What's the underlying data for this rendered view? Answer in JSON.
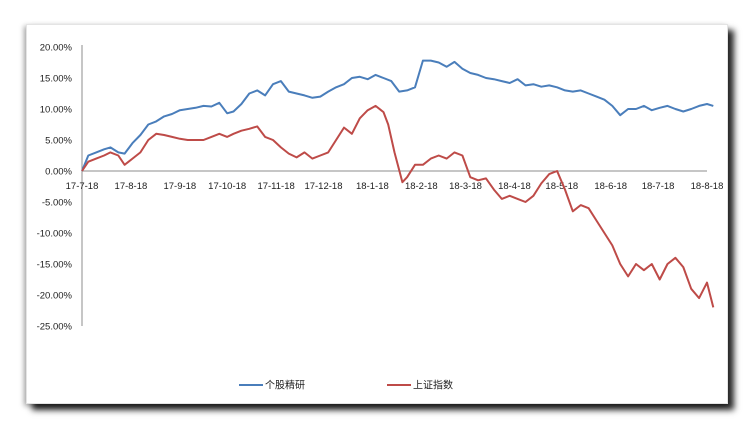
{
  "chart_data": {
    "type": "line",
    "title": "",
    "xlabel": "",
    "ylabel": "",
    "ylim": [
      -0.25,
      0.2
    ],
    "grid": false,
    "legend_position": "bottom",
    "y_ticks": [
      "20.00%",
      "15.00%",
      "10.00%",
      "5.00%",
      "0.00%",
      "-5.00%",
      "-10.00%",
      "-15.00%",
      "-20.00%",
      "-25.00%"
    ],
    "x_ticks": [
      "17-7-18",
      "17-8-18",
      "17-9-18",
      "17-10-18",
      "17-11-18",
      "17-12-18",
      "18-1-18",
      "18-2-18",
      "18-3-18",
      "18-4-18",
      "18-5-18",
      "18-6-18",
      "18-7-18",
      "18-8-18"
    ],
    "x_tick_dates": [
      "2017-07-18",
      "2017-08-18",
      "2017-09-18",
      "2017-10-18",
      "2017-11-18",
      "2017-12-18",
      "2018-01-18",
      "2018-02-18",
      "2018-03-18",
      "2018-04-18",
      "2018-05-18",
      "2018-06-18",
      "2018-07-18",
      "2018-08-18"
    ],
    "series": [
      {
        "name": "个股精研",
        "color": "#4a7ebb",
        "x": [
          "2017-07-18",
          "2017-07-22",
          "2017-07-27",
          "2017-08-01",
          "2017-08-05",
          "2017-08-10",
          "2017-08-14",
          "2017-08-19",
          "2017-08-24",
          "2017-08-29",
          "2017-09-03",
          "2017-09-08",
          "2017-09-13",
          "2017-09-18",
          "2017-09-23",
          "2017-09-28",
          "2017-10-03",
          "2017-10-08",
          "2017-10-13",
          "2017-10-18",
          "2017-10-22",
          "2017-10-27",
          "2017-11-01",
          "2017-11-06",
          "2017-11-11",
          "2017-11-16",
          "2017-11-21",
          "2017-11-26",
          "2017-12-01",
          "2017-12-06",
          "2017-12-11",
          "2017-12-16",
          "2017-12-21",
          "2017-12-26",
          "2017-12-31",
          "2018-01-05",
          "2018-01-10",
          "2018-01-15",
          "2018-01-20",
          "2018-01-25",
          "2018-01-30",
          "2018-02-04",
          "2018-02-09",
          "2018-02-14",
          "2018-02-19",
          "2018-02-24",
          "2018-03-01",
          "2018-03-06",
          "2018-03-11",
          "2018-03-16",
          "2018-03-21",
          "2018-03-26",
          "2018-03-31",
          "2018-04-05",
          "2018-04-10",
          "2018-04-15",
          "2018-04-20",
          "2018-04-25",
          "2018-04-30",
          "2018-05-05",
          "2018-05-10",
          "2018-05-15",
          "2018-05-20",
          "2018-05-25",
          "2018-05-30",
          "2018-06-04",
          "2018-06-09",
          "2018-06-14",
          "2018-06-19",
          "2018-06-24",
          "2018-06-29",
          "2018-07-04",
          "2018-07-09",
          "2018-07-14",
          "2018-07-19",
          "2018-07-24",
          "2018-07-29",
          "2018-08-03",
          "2018-08-08",
          "2018-08-13",
          "2018-08-18",
          "2018-08-22"
        ],
        "y": [
          0.0,
          0.025,
          0.03,
          0.035,
          0.038,
          0.03,
          0.028,
          0.045,
          0.058,
          0.075,
          0.08,
          0.088,
          0.092,
          0.098,
          0.1,
          0.102,
          0.105,
          0.104,
          0.11,
          0.093,
          0.096,
          0.108,
          0.125,
          0.13,
          0.122,
          0.14,
          0.145,
          0.128,
          0.125,
          0.122,
          0.118,
          0.12,
          0.128,
          0.135,
          0.14,
          0.15,
          0.152,
          0.148,
          0.155,
          0.15,
          0.145,
          0.128,
          0.13,
          0.135,
          0.178,
          0.178,
          0.175,
          0.168,
          0.176,
          0.165,
          0.158,
          0.155,
          0.15,
          0.148,
          0.145,
          0.142,
          0.148,
          0.138,
          0.14,
          0.136,
          0.138,
          0.135,
          0.13,
          0.128,
          0.13,
          0.125,
          0.12,
          0.115,
          0.105,
          0.09,
          0.1,
          0.1,
          0.105,
          0.098,
          0.102,
          0.105,
          0.1,
          0.096,
          0.1,
          0.105,
          0.108,
          0.105
        ]
      },
      {
        "name": "上证指数",
        "color": "#be4b48",
        "x": [
          "2017-07-18",
          "2017-07-22",
          "2017-07-27",
          "2017-08-01",
          "2017-08-05",
          "2017-08-10",
          "2017-08-14",
          "2017-08-19",
          "2017-08-24",
          "2017-08-29",
          "2017-09-03",
          "2017-09-08",
          "2017-09-13",
          "2017-09-18",
          "2017-09-23",
          "2017-09-28",
          "2017-10-03",
          "2017-10-08",
          "2017-10-13",
          "2017-10-18",
          "2017-10-22",
          "2017-10-27",
          "2017-11-01",
          "2017-11-06",
          "2017-11-11",
          "2017-11-16",
          "2017-11-21",
          "2017-11-26",
          "2017-12-01",
          "2017-12-06",
          "2017-12-11",
          "2017-12-16",
          "2017-12-21",
          "2017-12-26",
          "2017-12-31",
          "2018-01-05",
          "2018-01-10",
          "2018-01-15",
          "2018-01-20",
          "2018-01-25",
          "2018-01-28",
          "2018-02-01",
          "2018-02-06",
          "2018-02-09",
          "2018-02-14",
          "2018-02-19",
          "2018-02-24",
          "2018-03-01",
          "2018-03-06",
          "2018-03-11",
          "2018-03-16",
          "2018-03-21",
          "2018-03-26",
          "2018-03-31",
          "2018-04-05",
          "2018-04-10",
          "2018-04-15",
          "2018-04-20",
          "2018-04-25",
          "2018-04-30",
          "2018-05-05",
          "2018-05-10",
          "2018-05-15",
          "2018-05-20",
          "2018-05-25",
          "2018-05-30",
          "2018-06-04",
          "2018-06-09",
          "2018-06-14",
          "2018-06-19",
          "2018-06-24",
          "2018-06-29",
          "2018-07-04",
          "2018-07-09",
          "2018-07-14",
          "2018-07-19",
          "2018-07-24",
          "2018-07-29",
          "2018-08-03",
          "2018-08-08",
          "2018-08-13",
          "2018-08-18",
          "2018-08-22"
        ],
        "y": [
          0.0,
          0.015,
          0.02,
          0.025,
          0.03,
          0.025,
          0.01,
          0.02,
          0.03,
          0.05,
          0.06,
          0.058,
          0.055,
          0.052,
          0.05,
          0.05,
          0.05,
          0.055,
          0.06,
          0.055,
          0.06,
          0.065,
          0.068,
          0.072,
          0.055,
          0.05,
          0.038,
          0.028,
          0.022,
          0.03,
          0.02,
          0.025,
          0.03,
          0.05,
          0.07,
          0.06,
          0.085,
          0.098,
          0.105,
          0.095,
          0.075,
          0.03,
          -0.018,
          -0.01,
          0.01,
          0.01,
          0.02,
          0.025,
          0.02,
          0.03,
          0.025,
          -0.01,
          -0.015,
          -0.012,
          -0.03,
          -0.045,
          -0.04,
          -0.045,
          -0.05,
          -0.04,
          -0.02,
          -0.005,
          0.0,
          -0.03,
          -0.065,
          -0.055,
          -0.06,
          -0.08,
          -0.1,
          -0.12,
          -0.15,
          -0.17,
          -0.15,
          -0.16,
          -0.15,
          -0.175,
          -0.15,
          -0.14,
          -0.155,
          -0.19,
          -0.205,
          -0.18,
          -0.22
        ]
      }
    ]
  }
}
